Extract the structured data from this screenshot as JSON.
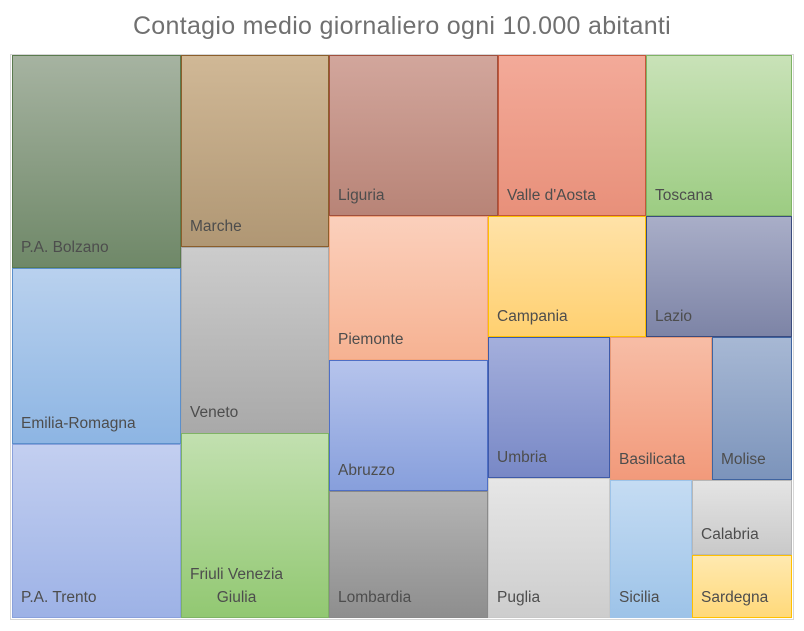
{
  "chart_data": {
    "type": "treemap",
    "title": "Contagio medio giornaliero ogni 10.000 abitanti",
    "items": [
      {
        "label": "P.A. Bolzano",
        "value": 5.12,
        "fill_top": "#a6b3a1",
        "fill_bottom": "#6f8868",
        "border": "#5a7a4e"
      },
      {
        "label": "Marche",
        "value": 3.59,
        "fill_top": "#d0b896",
        "fill_bottom": "#b09774",
        "border": "#8b5e2b"
      },
      {
        "label": "Liguria",
        "value": 3.25,
        "fill_top": "#d2a69c",
        "fill_bottom": "#b88477",
        "border": "#a0503e"
      },
      {
        "label": "Valle d'Aosta",
        "value": 2.98,
        "fill_top": "#f3aa99",
        "fill_bottom": "#e8907a",
        "border": "#c4573a"
      },
      {
        "label": "Toscana",
        "value": 2.97,
        "fill_top": "#c9e2b8",
        "fill_bottom": "#9ccc82",
        "border": "#7fb365"
      },
      {
        "label": "Emilia-Romagna",
        "value": 4.26,
        "fill_top": "#b9d1ee",
        "fill_bottom": "#8db5e3",
        "border": "#5b8fcb"
      },
      {
        "label": "Veneto",
        "value": 3.46,
        "fill_top": "#cccccc",
        "fill_bottom": "#a9a9a9",
        "border": "#a9a9a9"
      },
      {
        "label": "Friuli Venezia\nGiulia",
        "value": 3.33,
        "fill_top": "#c2e0b0",
        "fill_bottom": "#92c872",
        "border": "#7fb365"
      },
      {
        "label": "P.A. Trento",
        "value": 4.16,
        "fill_top": "#c3cff0",
        "fill_bottom": "#9db2e6",
        "border": "#8aa1dc"
      },
      {
        "label": "Piemonte",
        "value": 2.68,
        "fill_top": "#fbd0bc",
        "fill_bottom": "#f6b292",
        "border": "#f4a77f"
      },
      {
        "label": "Abruzzo",
        "value": 2.34,
        "fill_top": "#b6c4ec",
        "fill_bottom": "#879fdc",
        "border": "#4f6fc5"
      },
      {
        "label": "Lombardia",
        "value": 1.97,
        "fill_top": "#b4b4b4",
        "fill_bottom": "#8e8e8e",
        "border": "#8a8a8a"
      },
      {
        "label": "Campania",
        "value": 1.94,
        "fill_top": "#ffe2a8",
        "fill_bottom": "#ffd070",
        "border": "#ffc000"
      },
      {
        "label": "Lazio",
        "value": 1.79,
        "fill_top": "#a9aec8",
        "fill_bottom": "#7d84a6",
        "border": "#3a4b7e"
      },
      {
        "label": "Umbria",
        "value": 1.8,
        "fill_top": "#a4afdc",
        "fill_bottom": "#7888c6",
        "border": "#3e5aa8"
      },
      {
        "label": "Basilicata",
        "value": 1.47,
        "fill_top": "#f7bda6",
        "fill_bottom": "#f29a7b",
        "border": "#e79a7a"
      },
      {
        "label": "Molise",
        "value": 1.15,
        "fill_top": "#a7b8d4",
        "fill_bottom": "#7c94bb",
        "border": "#3f64a0"
      },
      {
        "label": "Puglia",
        "value": 1.67,
        "fill_top": "#e6e6e6",
        "fill_bottom": "#cdcdcd",
        "border": "#c8c8c8"
      },
      {
        "label": "Sicilia",
        "value": 0.96,
        "fill_top": "#c5dcf3",
        "fill_bottom": "#9dc3e8",
        "border": "#9dc3e8"
      },
      {
        "label": "Calabria",
        "value": 0.8,
        "fill_top": "#e4e4e4",
        "fill_bottom": "#c9c9c9",
        "border": "#b7b7b7"
      },
      {
        "label": "Sardegna",
        "value": 0.72,
        "fill_top": "#ffe9b0",
        "fill_bottom": "#ffd97a",
        "border": "#ffc000"
      }
    ]
  }
}
